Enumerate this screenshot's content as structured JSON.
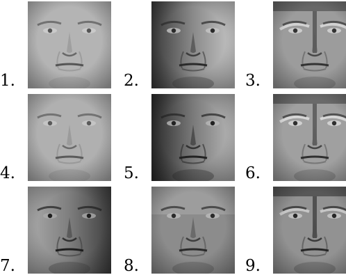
{
  "grid": {
    "labels": [
      "1.",
      "2.",
      "3.",
      "4.",
      "5.",
      "6.",
      "7.",
      "8.",
      "9."
    ],
    "faces": [
      {
        "tone": "#b4b4b4",
        "shade": "#8e8e8e",
        "light": "#cfcfcf",
        "feature": "#555555",
        "light_side": "none"
      },
      {
        "tone": "#8a8a8a",
        "shade": "#3a3a3a",
        "light": "#c6c6c6",
        "feature": "#2a2a2a",
        "light_side": "right"
      },
      {
        "tone": "#9c9c9c",
        "shade": "#5a5a5a",
        "light": "#d8d8d8",
        "feature": "#333333",
        "light_side": "relief"
      },
      {
        "tone": "#b0b0b0",
        "shade": "#8a8a8a",
        "light": "#cacaca",
        "feature": "#5a5a5a",
        "light_side": "none"
      },
      {
        "tone": "#7a7a7a",
        "shade": "#2a2a2a",
        "light": "#b8b8b8",
        "feature": "#222222",
        "light_side": "right"
      },
      {
        "tone": "#a0a0a0",
        "shade": "#5c5c5c",
        "light": "#dcdcdc",
        "feature": "#2f2f2f",
        "light_side": "relief"
      },
      {
        "tone": "#7e7e7e",
        "shade": "#3e3e3e",
        "light": "#aaaaaa",
        "feature": "#1e1e1e",
        "light_side": "left"
      },
      {
        "tone": "#8c8c8c",
        "shade": "#4e4e4e",
        "light": "#bdbdbd",
        "feature": "#2a2a2a",
        "light_side": "top"
      },
      {
        "tone": "#929292",
        "shade": "#4a4a4a",
        "light": "#cccccc",
        "feature": "#262626",
        "light_side": "relief"
      }
    ]
  }
}
